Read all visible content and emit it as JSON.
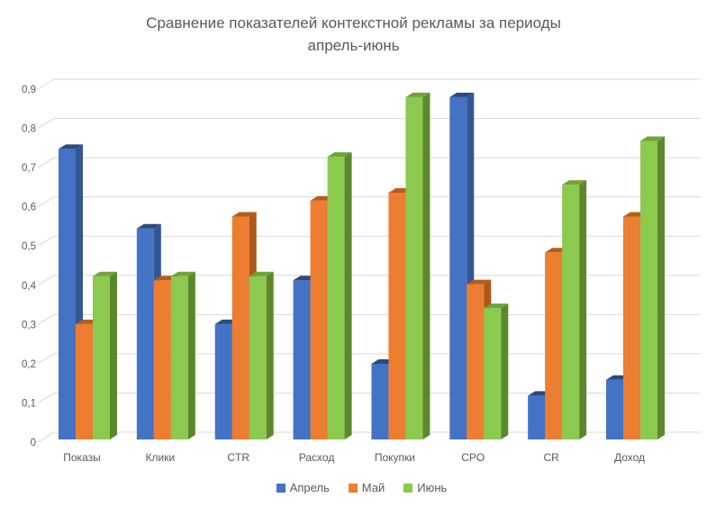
{
  "title": {
    "line1": "Сравнение показателей контекстной рекламы за периоды",
    "line2": "апрель-июнь"
  },
  "chart_data": {
    "type": "bar",
    "style": "3d-clustered-column",
    "title": "Сравнение показателей контекстной рекламы за периоды апрель-июнь",
    "categories": [
      "Показы",
      "Клики",
      "CTR",
      "Расход",
      "Покупки",
      "CPO",
      "CR",
      "Доход"
    ],
    "series": [
      {
        "name": "Апрель",
        "color": "#4472C4",
        "color_top": "#2B4A7E",
        "color_side": "#335795",
        "values": [
          0.73,
          0.53,
          0.29,
          0.4,
          0.19,
          0.86,
          0.11,
          0.15
        ]
      },
      {
        "name": "Май",
        "color": "#ED7D31",
        "color_top": "#B65D1E",
        "color_side": "#AE5716",
        "values": [
          0.29,
          0.4,
          0.56,
          0.6,
          0.62,
          0.39,
          0.47,
          0.56
        ]
      },
      {
        "name": "Июнь",
        "color": "#8CC94F",
        "color_top": "#6FA538",
        "color_side": "#5C882D",
        "values": [
          0.41,
          0.41,
          0.41,
          0.71,
          0.86,
          0.33,
          0.64,
          0.75
        ]
      }
    ],
    "ylim": [
      0,
      0.9
    ],
    "ytick_step": 0.1,
    "ytick_labels": [
      "0",
      "0,1",
      "0,2",
      "0,3",
      "0,4",
      "0,5",
      "0,6",
      "0,7",
      "0,8",
      "0,9"
    ],
    "grid": true,
    "legend_position": "bottom",
    "xlabel": "",
    "ylabel": ""
  },
  "colors": {
    "background": "#FFFFFF",
    "text": "#595959",
    "gridline": "#D9D9D9"
  }
}
